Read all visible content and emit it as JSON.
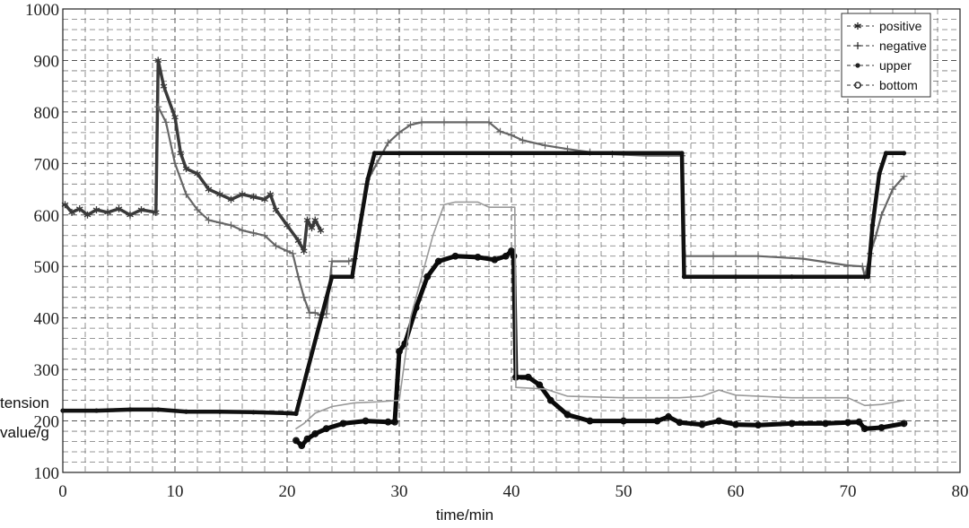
{
  "chart_data": {
    "type": "line",
    "title": "",
    "xlabel": "time/min",
    "ylabel": "tension value/g",
    "ylabel_lines": [
      "tension",
      "value/g"
    ],
    "xlim": [
      0,
      80
    ],
    "ylim": [
      100,
      1000
    ],
    "xticks": [
      0,
      10,
      20,
      30,
      40,
      50,
      60,
      70,
      80
    ],
    "yticks": [
      100,
      200,
      300,
      400,
      500,
      600,
      700,
      800,
      900,
      1000
    ],
    "grid": true,
    "grid_style": "dashed",
    "legend_position": "top-right",
    "series": [
      {
        "name": "positive",
        "color": "#3a3a3a",
        "marker": "asterisk",
        "points": [
          [
            0.2,
            620
          ],
          [
            0.8,
            605
          ],
          [
            1.5,
            612
          ],
          [
            2.2,
            600
          ],
          [
            3,
            610
          ],
          [
            4,
            605
          ],
          [
            5,
            612
          ],
          [
            6,
            600
          ],
          [
            7,
            610
          ],
          [
            8.3,
            605
          ],
          [
            8.5,
            900
          ],
          [
            9,
            850
          ],
          [
            10,
            790
          ],
          [
            10.5,
            720
          ],
          [
            11,
            690
          ],
          [
            12,
            680
          ],
          [
            13,
            650
          ],
          [
            14,
            640
          ],
          [
            15,
            630
          ],
          [
            16,
            640
          ],
          [
            17,
            635
          ],
          [
            18,
            630
          ],
          [
            18.5,
            640
          ],
          [
            19,
            610
          ],
          [
            20,
            580
          ],
          [
            21,
            550
          ],
          [
            21.5,
            530
          ],
          [
            21.8,
            590
          ],
          [
            22.2,
            575
          ],
          [
            22.5,
            590
          ],
          [
            23,
            570
          ]
        ]
      },
      {
        "name": "negative",
        "color": "#666666",
        "marker": "plus",
        "points": [
          [
            8.5,
            810
          ],
          [
            9.2,
            780
          ],
          [
            10,
            700
          ],
          [
            11,
            640
          ],
          [
            12,
            610
          ],
          [
            13,
            590
          ],
          [
            14,
            585
          ],
          [
            15,
            580
          ],
          [
            16,
            570
          ],
          [
            17,
            565
          ],
          [
            18,
            560
          ],
          [
            19,
            540
          ],
          [
            20,
            530
          ],
          [
            20.5,
            525
          ],
          [
            21,
            480
          ],
          [
            21.5,
            440
          ],
          [
            22,
            410
          ],
          [
            22.5,
            410
          ],
          [
            23,
            405
          ],
          [
            23.5,
            408
          ],
          [
            24,
            510
          ],
          [
            25.5,
            510
          ],
          [
            26,
            515
          ],
          [
            27,
            660
          ],
          [
            28,
            700
          ],
          [
            29,
            740
          ],
          [
            30,
            760
          ],
          [
            31,
            775
          ],
          [
            32,
            780
          ],
          [
            34,
            780
          ],
          [
            36,
            780
          ],
          [
            38,
            780
          ],
          [
            39,
            762
          ],
          [
            40,
            755
          ],
          [
            41,
            745
          ],
          [
            43,
            735
          ],
          [
            45,
            728
          ],
          [
            47,
            722
          ],
          [
            49,
            718
          ],
          [
            52,
            715
          ],
          [
            55.2,
            715
          ],
          [
            55.3,
            560
          ],
          [
            55.5,
            520
          ],
          [
            58,
            520
          ],
          [
            62,
            520
          ],
          [
            66,
            515
          ],
          [
            70,
            502
          ],
          [
            71.3,
            500
          ],
          [
            71.5,
            480
          ],
          [
            72,
            525
          ],
          [
            72.5,
            560
          ],
          [
            73,
            600
          ],
          [
            74,
            650
          ],
          [
            75,
            675
          ]
        ]
      },
      {
        "name": "upper",
        "color": "#111111",
        "marker": "dot",
        "points": [
          [
            0,
            220
          ],
          [
            3,
            220
          ],
          [
            6,
            222
          ],
          [
            8.5,
            222
          ],
          [
            11,
            218
          ],
          [
            14,
            218
          ],
          [
            17,
            217
          ],
          [
            20,
            215
          ],
          [
            20.8,
            214
          ],
          [
            24,
            480
          ],
          [
            25.8,
            480
          ],
          [
            26.5,
            580
          ],
          [
            27.2,
            670
          ],
          [
            27.8,
            720
          ],
          [
            30,
            720
          ],
          [
            40,
            720
          ],
          [
            50,
            720
          ],
          [
            55.2,
            720
          ],
          [
            55.4,
            480
          ],
          [
            60,
            480
          ],
          [
            65,
            480
          ],
          [
            70,
            480
          ],
          [
            71.8,
            480
          ],
          [
            72.2,
            580
          ],
          [
            72.8,
            680
          ],
          [
            73.4,
            720
          ],
          [
            75,
            720
          ]
        ]
      },
      {
        "name": "bottom",
        "color": "#0a0a0a",
        "marker": "circle",
        "points": [
          [
            20.8,
            162
          ],
          [
            21.3,
            152
          ],
          [
            21.8,
            165
          ],
          [
            22.5,
            175
          ],
          [
            23.5,
            185
          ],
          [
            25,
            195
          ],
          [
            27,
            200
          ],
          [
            29,
            198
          ],
          [
            29.6,
            198
          ],
          [
            30,
            335
          ],
          [
            30.5,
            350
          ],
          [
            31.5,
            420
          ],
          [
            32.5,
            480
          ],
          [
            33.5,
            510
          ],
          [
            35,
            520
          ],
          [
            37,
            518
          ],
          [
            38.5,
            513
          ],
          [
            39.5,
            520
          ],
          [
            40,
            530
          ],
          [
            40.2,
            520
          ],
          [
            40.4,
            285
          ],
          [
            41.5,
            285
          ],
          [
            42.5,
            270
          ],
          [
            43.5,
            240
          ],
          [
            45,
            212
          ],
          [
            47,
            200
          ],
          [
            50,
            200
          ],
          [
            53,
            200
          ],
          [
            54,
            208
          ],
          [
            55,
            197
          ],
          [
            57,
            193
          ],
          [
            58.5,
            200
          ],
          [
            60,
            193
          ],
          [
            62,
            192
          ],
          [
            65,
            195
          ],
          [
            68,
            195
          ],
          [
            70,
            197
          ],
          [
            71,
            198
          ],
          [
            71.5,
            185
          ],
          [
            73,
            187
          ],
          [
            75,
            195
          ]
        ]
      },
      {
        "name": "",
        "color": "#9a9a9a",
        "marker": "none",
        "points": [
          [
            20.8,
            185
          ],
          [
            21.5,
            195
          ],
          [
            22.5,
            215
          ],
          [
            24,
            228
          ],
          [
            26,
            235
          ],
          [
            28,
            237
          ],
          [
            30,
            240
          ],
          [
            30.5,
            320
          ],
          [
            31,
            400
          ],
          [
            32,
            480
          ],
          [
            33,
            560
          ],
          [
            34,
            620
          ],
          [
            35,
            625
          ],
          [
            37,
            625
          ],
          [
            38,
            615
          ],
          [
            40,
            615
          ],
          [
            40.3,
            615
          ],
          [
            40.4,
            265
          ],
          [
            43,
            262
          ],
          [
            45,
            248
          ],
          [
            50,
            245
          ],
          [
            55,
            245
          ],
          [
            57,
            248
          ],
          [
            58.5,
            260
          ],
          [
            60,
            250
          ],
          [
            65,
            245
          ],
          [
            70,
            245
          ],
          [
            71.5,
            230
          ],
          [
            73,
            232
          ],
          [
            75,
            240
          ]
        ]
      }
    ]
  }
}
